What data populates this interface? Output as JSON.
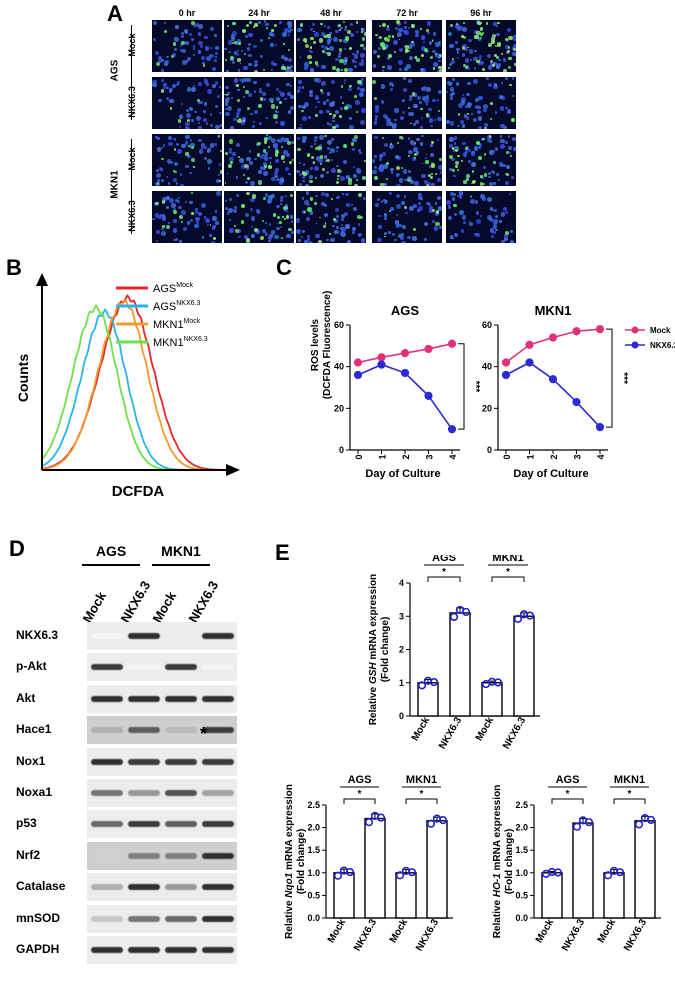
{
  "panels": {
    "A": "A",
    "B": "B",
    "C": "C",
    "D": "D",
    "E": "E"
  },
  "panel_a": {
    "timepoints": [
      "0 hr",
      "24 hr",
      "48 hr",
      "72 hr",
      "96 hr"
    ],
    "cell_lines": [
      "AGS",
      "MKN1"
    ],
    "conditions": [
      "Mock",
      "NKX6.3"
    ]
  },
  "panel_b": {
    "ylabel": "Counts",
    "xlabel": "DCFDA",
    "legend": [
      {
        "base": "AGS",
        "sup": "Mock",
        "color": "#e8262b"
      },
      {
        "base": "AGS",
        "sup": "NKX6.3",
        "color": "#2ab5e8"
      },
      {
        "base": "MKN1",
        "sup": "Mock",
        "color": "#f29a2e"
      },
      {
        "base": "MKN1",
        "sup": "NKX6.3",
        "color": "#6ee04a"
      }
    ]
  },
  "panel_c": {
    "ylabel_line1": "ROS levels",
    "ylabel_line2": "(DCFDA Fluorescence)",
    "xlabel": "Day of Culture",
    "significance": "***",
    "legend": [
      {
        "name": "Mock",
        "color": "#e0307a"
      },
      {
        "name": "NKX6.3",
        "color": "#2b2bd6"
      }
    ]
  },
  "panel_d": {
    "groups": [
      "AGS",
      "MKN1"
    ],
    "lanes": [
      "Mock",
      "NKX6.3",
      "Mock",
      "NKX6.3"
    ],
    "proteins": [
      "NKX6.3",
      "p-Akt",
      "Akt",
      "Hace1",
      "Nox1",
      "Noxa1",
      "p53",
      "Nrf2",
      "Catalase",
      "mnSOD",
      "GAPDH"
    ],
    "band_intensity": [
      [
        0.05,
        0.9,
        0.08,
        0.9
      ],
      [
        0.85,
        0.05,
        0.85,
        0.05
      ],
      [
        0.9,
        0.9,
        0.9,
        0.9
      ],
      [
        0.35,
        0.7,
        0.3,
        0.85
      ],
      [
        0.9,
        0.85,
        0.85,
        0.85
      ],
      [
        0.6,
        0.45,
        0.75,
        0.4
      ],
      [
        0.65,
        0.85,
        0.7,
        0.85
      ],
      [
        0.2,
        0.55,
        0.55,
        0.9
      ],
      [
        0.35,
        0.9,
        0.45,
        0.9
      ],
      [
        0.25,
        0.6,
        0.65,
        0.9
      ],
      [
        0.9,
        0.9,
        0.9,
        0.9
      ]
    ],
    "asterisk": "*"
  },
  "panel_e": {
    "significance": "*",
    "groups": [
      "AGS",
      "MKN1"
    ],
    "bar_labels": [
      "Mock",
      "NKX6.3",
      "Mock",
      "NKX6.3"
    ]
  },
  "chart_data": [
    {
      "type": "line",
      "id": "C-AGS",
      "title": "AGS",
      "xlabel": "Day of Culture",
      "ylabel": "ROS levels (DCFDA Fluorescence)",
      "x": [
        0,
        1,
        2,
        3,
        4
      ],
      "xlim": [
        0,
        4
      ],
      "ylim": [
        0,
        60
      ],
      "yticks": [
        0,
        20,
        40,
        60
      ],
      "series": [
        {
          "name": "Mock",
          "values": [
            42,
            44.5,
            46.5,
            48.5,
            51
          ]
        },
        {
          "name": "NKX6.3",
          "values": [
            36,
            41,
            37,
            26,
            10
          ]
        }
      ]
    },
    {
      "type": "line",
      "id": "C-MKN1",
      "title": "MKN1",
      "xlabel": "Day of Culture",
      "ylabel": "",
      "x": [
        0,
        1,
        2,
        3,
        4
      ],
      "xlim": [
        0,
        4
      ],
      "ylim": [
        0,
        60
      ],
      "yticks": [
        0,
        20,
        40,
        60
      ],
      "series": [
        {
          "name": "Mock",
          "values": [
            42,
            50.5,
            54,
            57,
            58
          ]
        },
        {
          "name": "NKX6.3",
          "values": [
            36,
            42,
            34,
            23,
            11
          ]
        }
      ]
    },
    {
      "type": "bar",
      "id": "E-GSH",
      "gene": "GSH",
      "ylabel_pre": "Relative ",
      "ylabel_post": " mRNA expression",
      "ylabel_line2": "(Fold change)",
      "categories": [
        "Mock",
        "NKX6.3",
        "Mock",
        "NKX6.3"
      ],
      "values": [
        1.0,
        3.1,
        1.0,
        3.0
      ],
      "errors": [
        0.1,
        0.15,
        0.05,
        0.1
      ],
      "ylim": [
        0,
        4
      ],
      "yticks": [
        "0",
        "1",
        "2",
        "3",
        "4"
      ]
    },
    {
      "type": "bar",
      "id": "E-Nqo1",
      "gene": "Nqo1",
      "ylabel_pre": "Relative ",
      "ylabel_post": " mRNA expression",
      "ylabel_line2": "(Fold change)",
      "categories": [
        "Mock",
        "NKX6.3",
        "Mock",
        "NKX6.3"
      ],
      "values": [
        1.0,
        2.2,
        1.0,
        2.15
      ],
      "errors": [
        0.08,
        0.1,
        0.07,
        0.08
      ],
      "ylim": [
        0,
        2.5
      ],
      "yticks": [
        "0.0",
        "0.5",
        "1.0",
        "1.5",
        "2.0",
        "2.5"
      ]
    },
    {
      "type": "bar",
      "id": "E-HO1",
      "gene": "HO-1",
      "ylabel_pre": "Relative ",
      "ylabel_post": " mRNA expression",
      "ylabel_line2": "(Fold change)",
      "categories": [
        "Mock",
        "NKX6.3",
        "Mock",
        "NKX6.3"
      ],
      "values": [
        1.0,
        2.1,
        1.0,
        2.15
      ],
      "errors": [
        0.03,
        0.1,
        0.07,
        0.1
      ],
      "ylim": [
        0,
        2.5
      ],
      "yticks": [
        "0.0",
        "0.5",
        "1.0",
        "1.5",
        "2.0",
        "2.5"
      ]
    }
  ]
}
